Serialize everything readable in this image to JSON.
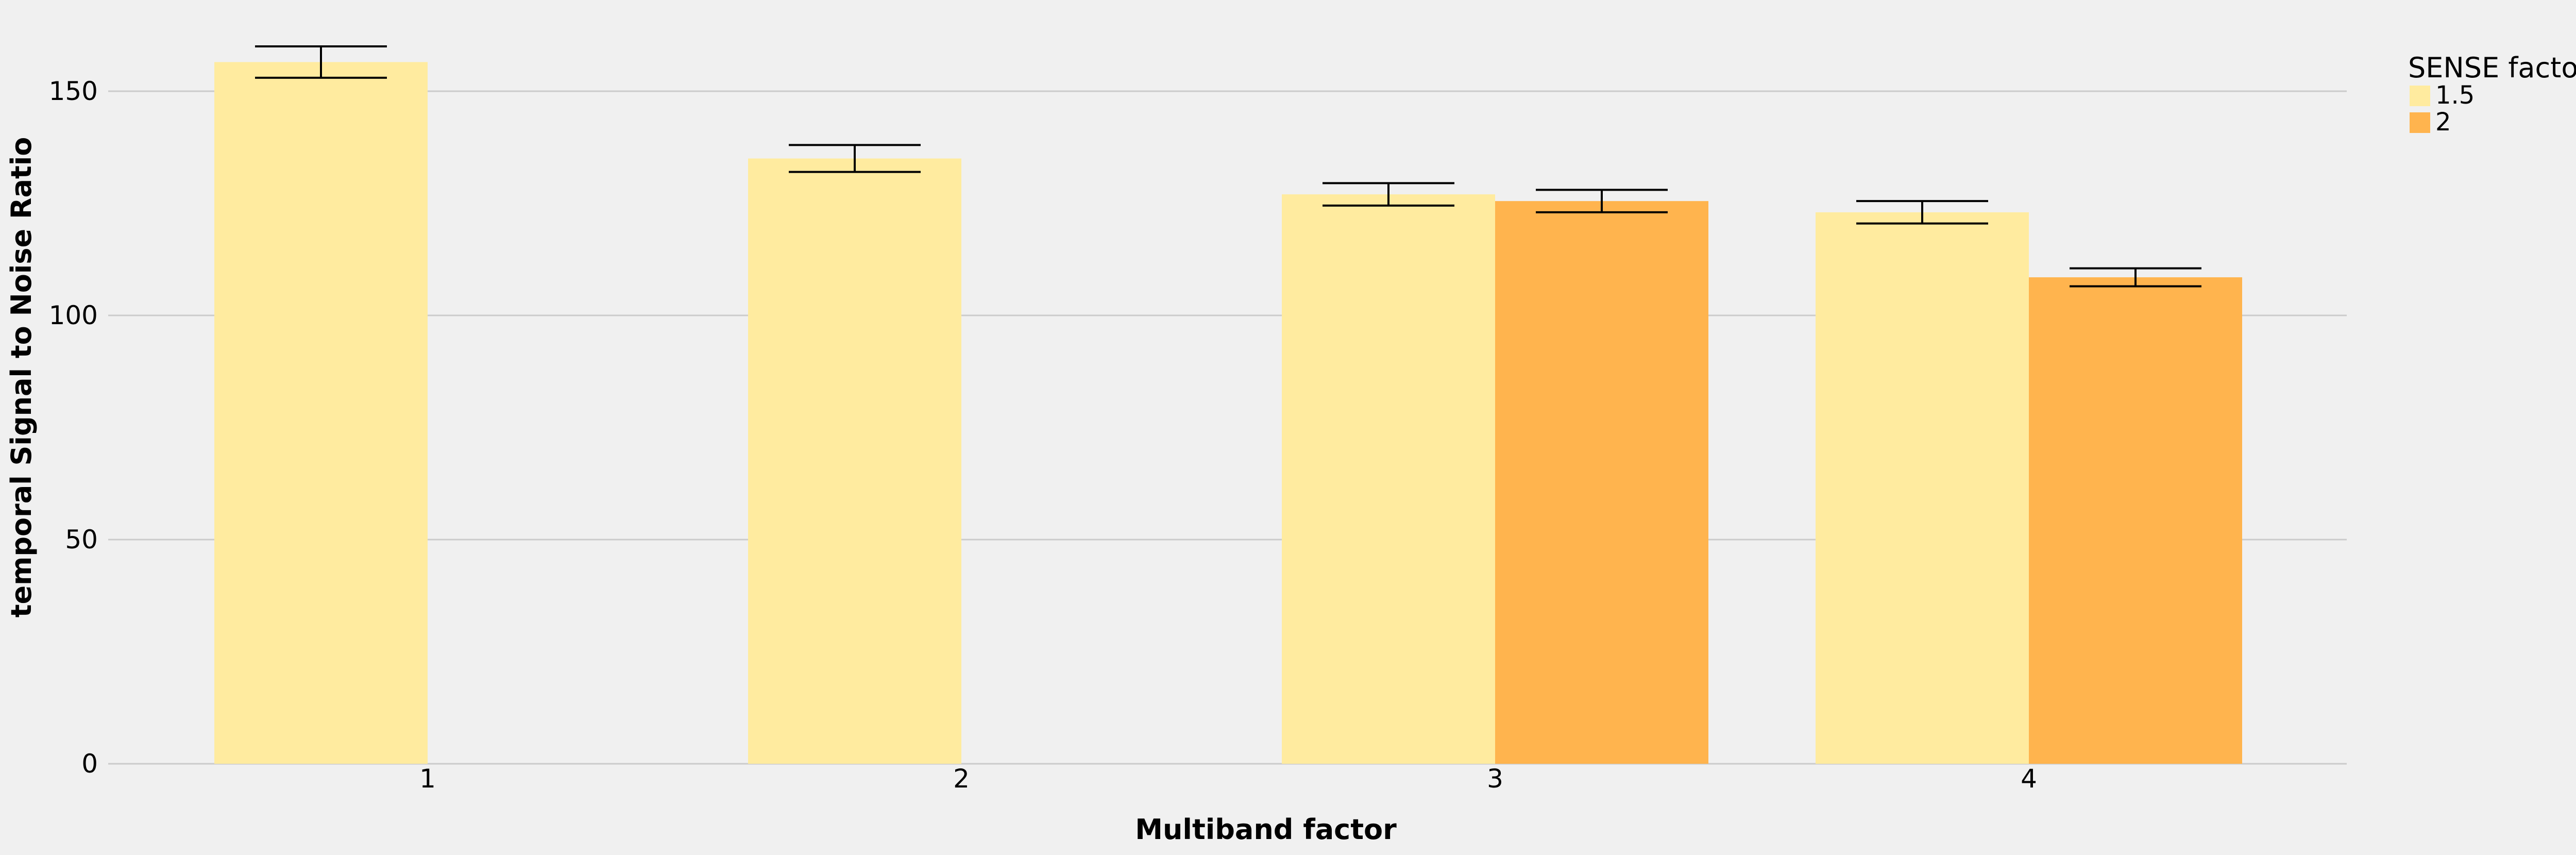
{
  "chart_data": {
    "type": "bar",
    "title": "",
    "xlabel": "Multiband factor",
    "ylabel": "temporal Signal to Noise Ratio",
    "categories": [
      "1",
      "2",
      "3",
      "4"
    ],
    "ylim": [
      0,
      165
    ],
    "yticks": [
      0,
      50,
      100,
      150
    ],
    "grid": true,
    "legend": {
      "title": "SENSE factor",
      "position": "top-right"
    },
    "series": [
      {
        "name": "1.5",
        "color": "#ffeb9f",
        "values": [
          156.5,
          135.0,
          127.0,
          123.0
        ],
        "error_low": [
          153.0,
          132.0,
          124.5,
          120.5
        ],
        "error_high": [
          160.0,
          138.0,
          129.5,
          125.5
        ]
      },
      {
        "name": "2",
        "color": "#ffb44e",
        "values": [
          null,
          null,
          125.5,
          108.5
        ],
        "error_low": [
          null,
          null,
          123.0,
          106.5
        ],
        "error_high": [
          null,
          null,
          128.0,
          110.5
        ]
      }
    ],
    "colors": {
      "background": "#f0f0f0",
      "grid": "#cbcbcb",
      "error_bar": "#000000"
    }
  }
}
